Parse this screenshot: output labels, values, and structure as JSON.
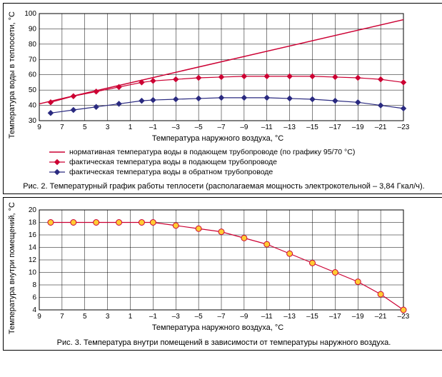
{
  "chart1": {
    "type": "line",
    "ylabel": "Температура воды в теплосети, °С",
    "xlabel": "Температура наружного воздуха, °С",
    "caption": "Рис. 2. Температурный график работы теплосети (располагаемая мощность электрокотельной – 3,84 Гкал/ч).",
    "xticks": [
      9,
      7,
      5,
      3,
      1,
      -1,
      -3,
      -5,
      -7,
      -9,
      -11,
      -13,
      -15,
      -17,
      -19,
      -21,
      -23
    ],
    "yticks": [
      30,
      40,
      50,
      60,
      70,
      80,
      90,
      100
    ],
    "xlim": [
      9,
      -23
    ],
    "ylim": [
      30,
      100
    ],
    "grid_color": "#000000",
    "background": "#ffffff",
    "series": [
      {
        "id": "norm",
        "label": "нормативная температура воды в подающем трубопроводе (по графику 95/70 °С)",
        "color": "#cc0033",
        "marker": "none",
        "width": 1.5,
        "x": [
          9,
          -23
        ],
        "y": [
          41,
          96
        ]
      },
      {
        "id": "supply",
        "label": "фактическая температура воды в подающем трубопроводе",
        "color": "#cc0033",
        "marker": "diamond",
        "marker_fill": "#cc0033",
        "width": 1.2,
        "x": [
          8,
          6,
          4,
          2,
          0,
          -1,
          -3,
          -5,
          -7,
          -9,
          -11,
          -13,
          -15,
          -17,
          -19,
          -21,
          -23
        ],
        "y": [
          42,
          46,
          49,
          52,
          55,
          56,
          57,
          58,
          58.5,
          59,
          59,
          59,
          59,
          58.5,
          58,
          57,
          55
        ]
      },
      {
        "id": "return",
        "label": "фактическая температура воды в обратном трубопроводе",
        "color": "#2a2a80",
        "marker": "diamond",
        "marker_fill": "#2a2a80",
        "width": 1.2,
        "x": [
          8,
          6,
          4,
          2,
          0,
          -1,
          -3,
          -5,
          -7,
          -9,
          -11,
          -13,
          -15,
          -17,
          -19,
          -21,
          -23
        ],
        "y": [
          35,
          37,
          39,
          41,
          43,
          43.5,
          44,
          44.5,
          45,
          45,
          45,
          44.5,
          44,
          43,
          42,
          40,
          38
        ]
      }
    ]
  },
  "chart2": {
    "type": "line",
    "ylabel": "Температура внутри помещений, °С",
    "xlabel": "Температура наружного воздуха, °С",
    "caption": "Рис. 3. Температура внутри помещений в зависимости от температуры наружного воздуха.",
    "xticks": [
      9,
      7,
      5,
      3,
      1,
      -1,
      -3,
      -5,
      -7,
      -9,
      -11,
      -13,
      -15,
      -17,
      -19,
      -21,
      -23
    ],
    "yticks": [
      4,
      6,
      8,
      10,
      12,
      14,
      16,
      18,
      20
    ],
    "xlim": [
      9,
      -23
    ],
    "ylim": [
      4,
      20
    ],
    "grid_color": "#000000",
    "background": "#ffffff",
    "series": [
      {
        "id": "indoor",
        "color": "#cc0033",
        "marker": "circle",
        "marker_fill": "#ffcc33",
        "marker_stroke": "#cc0033",
        "width": 1.2,
        "x": [
          8,
          6,
          4,
          2,
          0,
          -1,
          -3,
          -5,
          -7,
          -9,
          -11,
          -13,
          -15,
          -17,
          -19,
          -21,
          -23
        ],
        "y": [
          18,
          18,
          18,
          18,
          18,
          18,
          17.5,
          17,
          16.5,
          15.5,
          14.5,
          13,
          11.5,
          10,
          8.5,
          6.5,
          4
        ]
      }
    ]
  }
}
